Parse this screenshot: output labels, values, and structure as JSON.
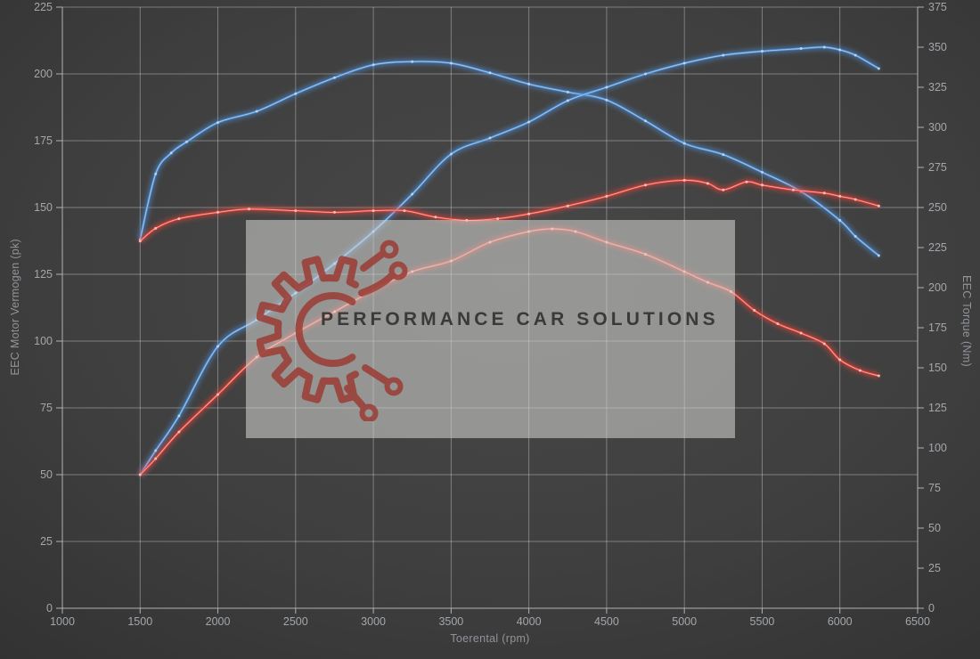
{
  "chart_data": {
    "type": "line",
    "title": "",
    "xlabel": "Toerental (rpm)",
    "ylabel_left": "EEC Motor Vermogen (pk)",
    "ylabel_right": "EEC Torque (Nm)",
    "xlim": [
      1000,
      6500
    ],
    "left_ylim": [
      0,
      225
    ],
    "right_ylim": [
      0,
      375
    ],
    "grid": true,
    "legend": false,
    "x_ticks": [
      1000,
      1500,
      2000,
      2500,
      3000,
      3500,
      4000,
      4500,
      5000,
      5500,
      6000,
      6500
    ],
    "left_ticks": [
      0,
      25,
      50,
      75,
      100,
      125,
      150,
      175,
      200,
      225
    ],
    "right_ticks": [
      0,
      25,
      50,
      75,
      100,
      125,
      150,
      175,
      200,
      225,
      250,
      275,
      300,
      325,
      350,
      375
    ],
    "series": [
      {
        "name": "blue-torque",
        "axis": "right",
        "unit": "Nm",
        "color": "#4f8fd6",
        "highlight": "#b9d7f5",
        "x": [
          1500,
          1600,
          1700,
          1800,
          2000,
          2250,
          2500,
          2750,
          3000,
          3250,
          3500,
          3750,
          4000,
          4250,
          4500,
          4750,
          5000,
          5250,
          5500,
          5750,
          6000,
          6100,
          6250
        ],
        "y": [
          230,
          271,
          284,
          291,
          303,
          310,
          321,
          331,
          339,
          341,
          340,
          334,
          327,
          322,
          317,
          304,
          290,
          283,
          272,
          260,
          242,
          232,
          220
        ]
      },
      {
        "name": "blue-power",
        "axis": "left",
        "unit": "pk",
        "color": "#4f8fd6",
        "highlight": "#b9d7f5",
        "x": [
          1500,
          1600,
          1750,
          2000,
          2250,
          2500,
          2750,
          3000,
          3250,
          3500,
          3750,
          4000,
          4250,
          4500,
          4750,
          5000,
          5250,
          5500,
          5750,
          5900,
          6000,
          6100,
          6250
        ],
        "y": [
          50,
          59,
          72,
          98,
          108,
          118,
          129,
          141,
          155,
          170,
          176,
          182,
          190,
          195,
          200,
          204,
          207,
          208.5,
          209.5,
          210,
          209,
          207,
          202
        ]
      },
      {
        "name": "red-torque",
        "axis": "right",
        "unit": "Nm",
        "color": "#e6443a",
        "highlight": "#ffc2bc",
        "x": [
          1500,
          1600,
          1750,
          2000,
          2200,
          2500,
          2750,
          3000,
          3200,
          3400,
          3600,
          3800,
          4000,
          4250,
          4500,
          4750,
          5000,
          5150,
          5250,
          5400,
          5500,
          5700,
          5900,
          6000,
          6100,
          6250
        ],
        "y": [
          229,
          237,
          243,
          247,
          249,
          248,
          247,
          248,
          248,
          244,
          242,
          243,
          246,
          251,
          257,
          264,
          267,
          265,
          261,
          266,
          264,
          261,
          259,
          257,
          255,
          251
        ]
      },
      {
        "name": "red-power",
        "axis": "left",
        "unit": "pk",
        "color": "#e6443a",
        "highlight": "#ffc2bc",
        "x": [
          1500,
          1600,
          1750,
          2000,
          2250,
          2500,
          2750,
          3000,
          3250,
          3500,
          3750,
          4000,
          4150,
          4300,
          4500,
          4750,
          5000,
          5150,
          5300,
          5450,
          5600,
          5750,
          5900,
          6000,
          6130,
          6250
        ],
        "y": [
          50,
          56,
          66,
          80,
          94,
          103,
          111,
          119,
          126,
          130,
          137,
          141,
          142,
          141,
          137,
          132.5,
          126,
          122,
          118.5,
          111.5,
          106.5,
          103,
          99,
          93,
          89,
          87
        ]
      }
    ]
  },
  "watermark": {
    "text": "PERFORMANCE CAR SOLUTIONS",
    "logo_icon": "gear-circuit-icon",
    "bg_color": "rgba(211,211,208,0.57)",
    "text_color": "#3a3a3a",
    "logo_color": "#9c3c34"
  },
  "colors": {
    "background": "#414141",
    "grid": "rgba(255,255,255,0.33)",
    "axis_line": "#b2b2b2",
    "tick_text": "#a3a7ab",
    "title_text": "#8f9499",
    "blue_line": "#4f8fd6",
    "red_line": "#e6443a"
  }
}
